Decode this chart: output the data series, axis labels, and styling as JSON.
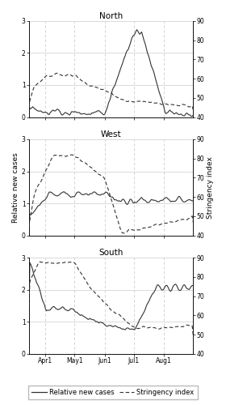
{
  "titles": [
    "North",
    "West",
    "South"
  ],
  "ylabel_left": "Relative new cases",
  "ylabel_right": "Stringency index",
  "ylim_left": [
    0,
    3
  ],
  "ylim_right": [
    40,
    90
  ],
  "yticks_left": [
    0,
    1,
    2,
    3
  ],
  "yticks_right": [
    40,
    50,
    60,
    70,
    80,
    90
  ],
  "x_tick_labels": [
    "Apr1",
    "May1",
    "Jun1",
    "Jul1",
    "Aug1"
  ],
  "legend_labels": [
    "Relative new cases",
    "Stringency index"
  ],
  "background_color": "#ffffff",
  "line_color": "#333333",
  "grid_color": "#cccccc",
  "title_fontsize": 7.5,
  "label_fontsize": 6.5,
  "tick_fontsize": 5.5,
  "legend_fontsize": 6,
  "figsize": [
    2.8,
    5.0
  ],
  "dpi": 100
}
